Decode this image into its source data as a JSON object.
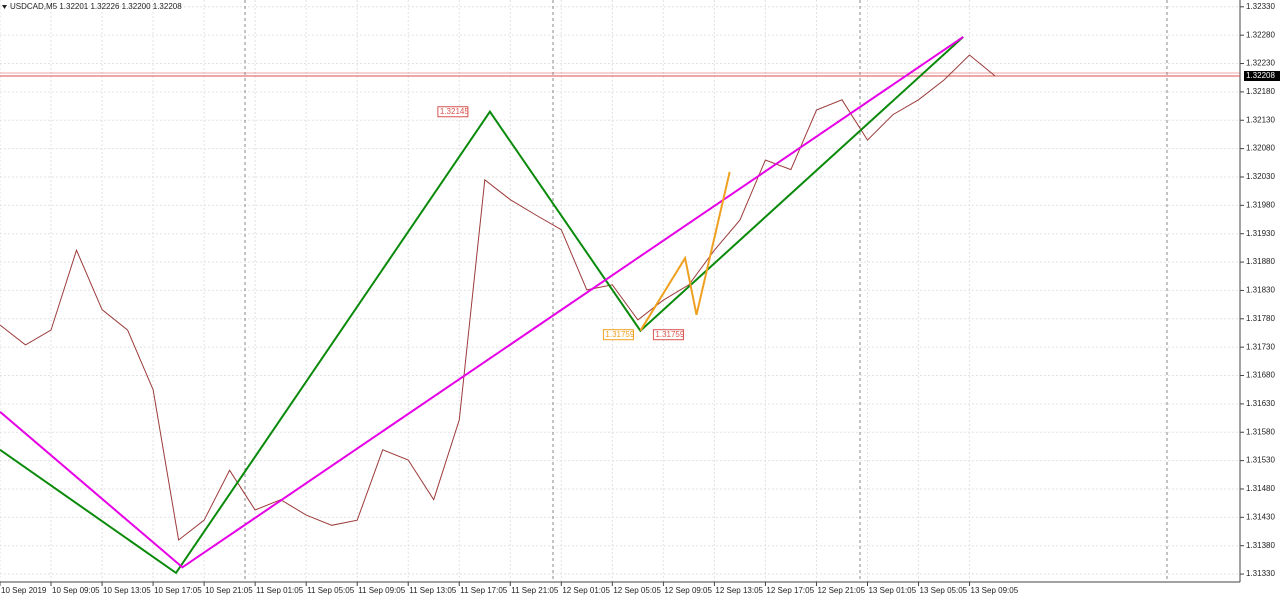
{
  "chart_data": {
    "type": "line",
    "title": "USDCAD,M5  1.32201 1.32226 1.32200 1.32208",
    "xlim": [
      0,
      97.2
    ],
    "ylim": [
      1.31316,
      1.32342
    ],
    "grid": true,
    "xticks": [
      {
        "value": 0,
        "label": "10 Sep 2019"
      },
      {
        "value": 4,
        "label": "10 Sep 09:05"
      },
      {
        "value": 8,
        "label": "10 Sep 13:05"
      },
      {
        "value": 12,
        "label": "10 Sep 17:05"
      },
      {
        "value": 16,
        "label": "10 Sep 21:05"
      },
      {
        "value": 20,
        "label": "11 Sep 01:05"
      },
      {
        "value": 24,
        "label": "11 Sep 05:05"
      },
      {
        "value": 28,
        "label": "11 Sep 09:05"
      },
      {
        "value": 32,
        "label": "11 Sep 13:05"
      },
      {
        "value": 36,
        "label": "11 Sep 17:05"
      },
      {
        "value": 40,
        "label": "11 Sep 21:05"
      },
      {
        "value": 44,
        "label": "12 Sep 01:05"
      },
      {
        "value": 48,
        "label": "12 Sep 05:05"
      },
      {
        "value": 52,
        "label": "12 Sep 09:05"
      },
      {
        "value": 56,
        "label": "12 Sep 13:05"
      },
      {
        "value": 60,
        "label": "12 Sep 17:05"
      },
      {
        "value": 64,
        "label": "12 Sep 21:05"
      },
      {
        "value": 68,
        "label": "13 Sep 01:05"
      },
      {
        "value": 72,
        "label": "13 Sep 05:05"
      },
      {
        "value": 76,
        "label": "13 Sep 09:05"
      }
    ],
    "yticks": [
      {
        "value": 1.3233,
        "label": "1.32330"
      },
      {
        "value": 1.3228,
        "label": "1.32280"
      },
      {
        "value": 1.3223,
        "label": "1.32230"
      },
      {
        "value": 1.3218,
        "label": "1.32180"
      },
      {
        "value": 1.3213,
        "label": "1.32130"
      },
      {
        "value": 1.3208,
        "label": "1.32080"
      },
      {
        "value": 1.3203,
        "label": "1.32030"
      },
      {
        "value": 1.3198,
        "label": "1.31980"
      },
      {
        "value": 1.3193,
        "label": "1.31930"
      },
      {
        "value": 1.3188,
        "label": "1.31880"
      },
      {
        "value": 1.3183,
        "label": "1.31830"
      },
      {
        "value": 1.3178,
        "label": "1.31780"
      },
      {
        "value": 1.3173,
        "label": "1.31730"
      },
      {
        "value": 1.3168,
        "label": "1.31680"
      },
      {
        "value": 1.3163,
        "label": "1.31630"
      },
      {
        "value": 1.3158,
        "label": "1.31580"
      },
      {
        "value": 1.3153,
        "label": "1.31530"
      },
      {
        "value": 1.3148,
        "label": "1.31480"
      },
      {
        "value": 1.3143,
        "label": "1.31430"
      },
      {
        "value": 1.3138,
        "label": "1.31380"
      },
      {
        "value": 1.3133,
        "label": "1.31330"
      }
    ],
    "current_price": {
      "value": 1.32208,
      "color": "#d9534f"
    },
    "series": [
      {
        "color": "#9c3b3b",
        "x": [
          0,
          2,
          4,
          6,
          8,
          10,
          12,
          14,
          16,
          18,
          20,
          22,
          24,
          26,
          28,
          30,
          32,
          34,
          36,
          38,
          40,
          42,
          44,
          46,
          48,
          50,
          52,
          54,
          56,
          58,
          60,
          62,
          64,
          66,
          68,
          70,
          72,
          74,
          76,
          78
        ],
        "values": [
          1.31769,
          1.31734,
          1.3176,
          1.31901,
          1.31796,
          1.3176,
          1.31655,
          1.3139,
          1.31425,
          1.31513,
          1.31443,
          1.31461,
          1.31434,
          1.31416,
          1.31425,
          1.31549,
          1.31531,
          1.31461,
          1.31602,
          1.32025,
          1.3199,
          1.31963,
          1.31937,
          1.31831,
          1.3184,
          1.31778,
          1.31813,
          1.3184,
          1.31901,
          1.31954,
          1.3206,
          1.32043,
          1.32148,
          1.32166,
          1.32095,
          1.3214,
          1.32166,
          1.32201,
          1.32245,
          1.32208
        ]
      },
      {
        "color": "#0a8a0a",
        "x": [
          0,
          13.8,
          38.4,
          50.2,
          75.5
        ],
        "values": [
          1.31549,
          1.31332,
          1.32145,
          1.31759,
          1.32277
        ]
      },
      {
        "color": "#e600e6",
        "x": [
          0,
          14.3,
          75.5
        ],
        "values": [
          1.31616,
          1.31342,
          1.32277
        ]
      },
      {
        "color": "#f0a020",
        "x": [
          50.2,
          53.7,
          54.6,
          57.2
        ],
        "values": [
          1.31759,
          1.31887,
          1.31787,
          1.32039
        ]
      }
    ]
  }
}
